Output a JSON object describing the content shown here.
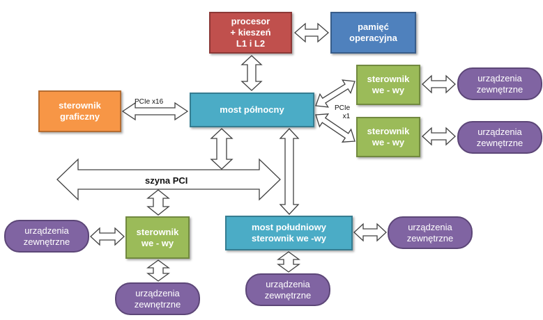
{
  "nodes": {
    "cpu": {
      "text": "procesor\n+ kieszeń\nL1 i L2",
      "color": "#c0504d",
      "border": "#8c3836"
    },
    "ram": {
      "text": "pamięć\noperacyjna",
      "color": "#4f81bd",
      "border": "#385d8a"
    },
    "gpu": {
      "text": "sterownik\ngraficzny",
      "color": "#f79646",
      "border": "#b66d31"
    },
    "north": {
      "text": "most północny",
      "color": "#4bacc6",
      "border": "#357d91"
    },
    "io1": {
      "text": "sterownik\nwe - wy",
      "color": "#9bbb59",
      "border": "#71893f"
    },
    "io2": {
      "text": "sterownik\nwe - wy",
      "color": "#9bbb59",
      "border": "#71893f"
    },
    "io3": {
      "text": "sterownik\nwe - wy",
      "color": "#9bbb59",
      "border": "#71893f"
    },
    "south": {
      "text": "most południowy\nsterownik we -wy",
      "color": "#4bacc6",
      "border": "#357d91"
    }
  },
  "devices": {
    "ext1": "urządzenia\nzewnętrzne",
    "ext2": "urządzenia\nzewnętrzne",
    "ext3": "urządzenia\nzewnętrzne",
    "ext4": "urządzenia\nzewnętrzne",
    "ext5": "urządzenia\nzewnętrzne",
    "ext6": "urządzenia\nzewnętrzne"
  },
  "bus": {
    "label": "szyna PCI"
  },
  "link_labels": {
    "pcie16": "PCIe x16",
    "pcie1": "PCIe\nx1"
  },
  "colors": {
    "arrow_fill": "#ffffff",
    "arrow_stroke": "#404040"
  }
}
